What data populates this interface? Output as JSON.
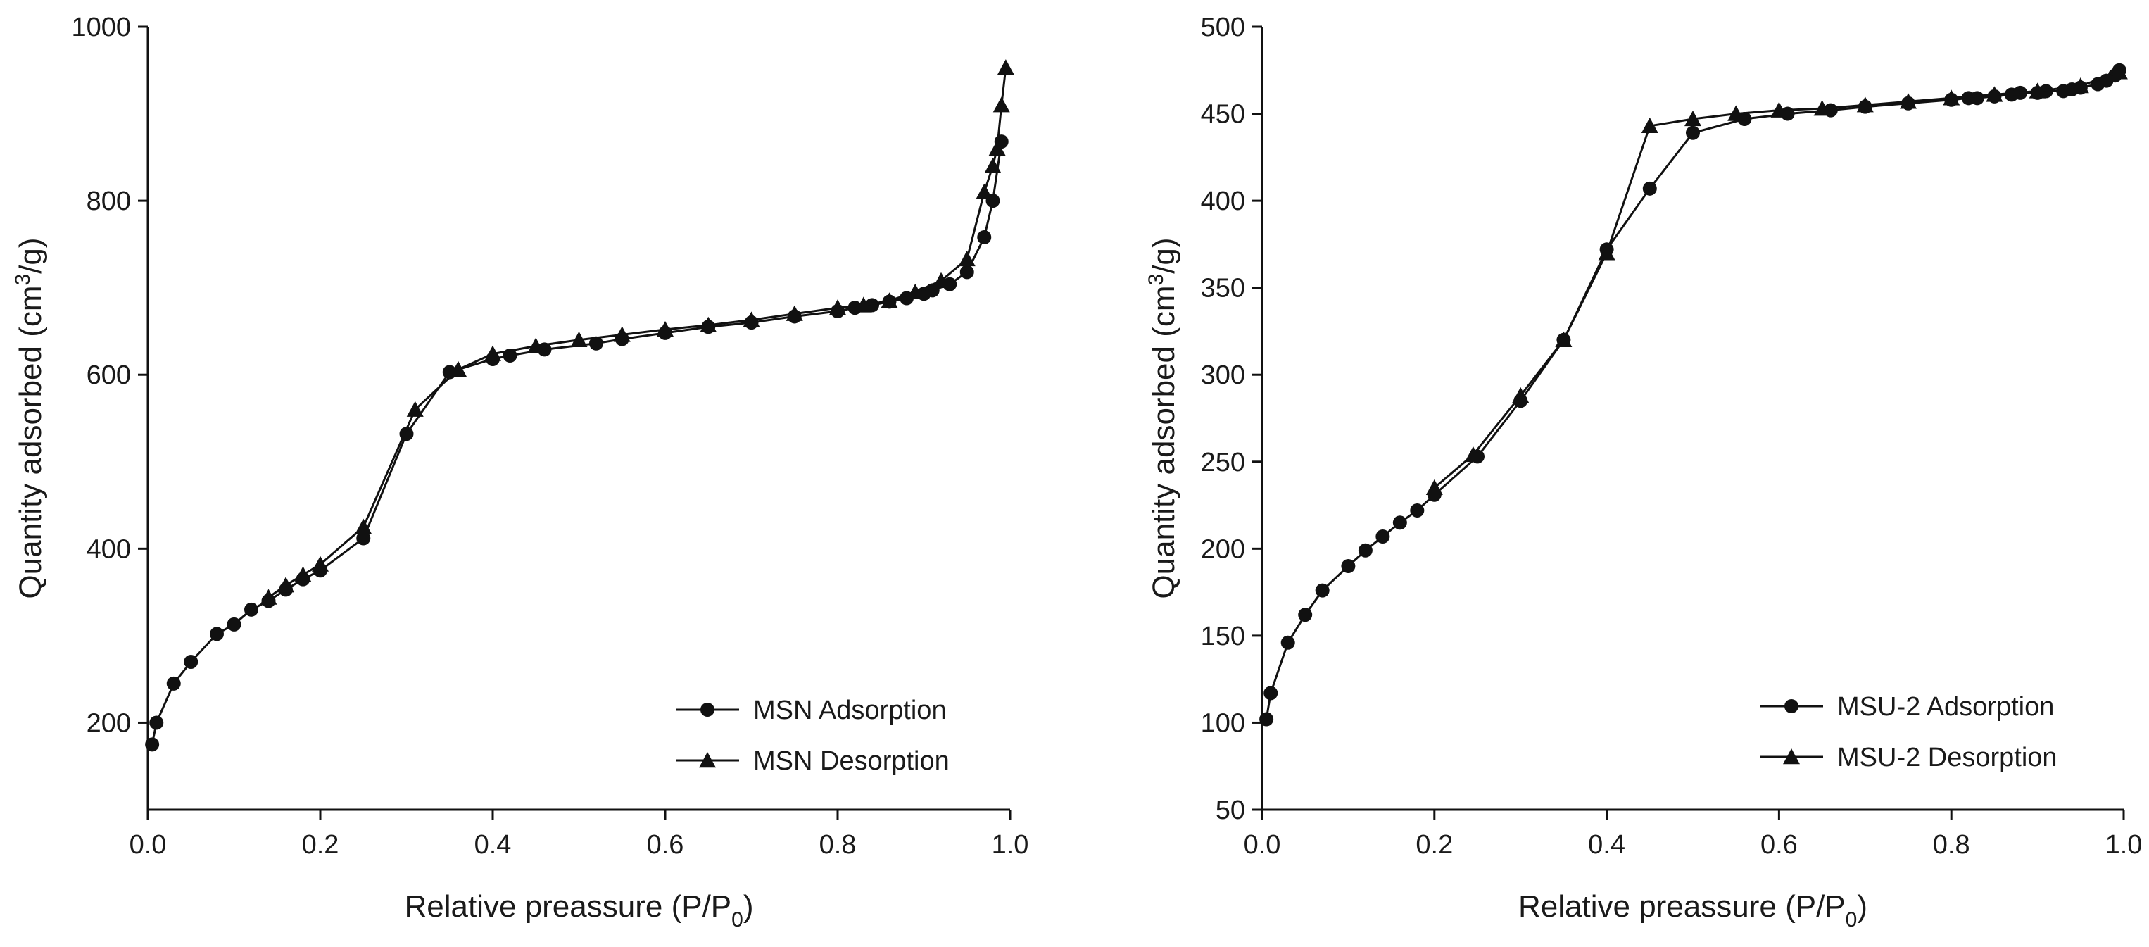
{
  "chart_data": [
    {
      "type": "line",
      "panel": "left",
      "xlabel_prefix": "Relative preassure (P/P",
      "xlabel_sub": "0",
      "xlabel_suffix": ")",
      "ylabel_prefix": "Quantity adsorbed (cm",
      "ylabel_sup": "3",
      "ylabel_suffix": "/g)",
      "xlim": [
        0.0,
        1.0
      ],
      "ylim": [
        100,
        1000
      ],
      "xticks": [
        0.0,
        0.2,
        0.4,
        0.6,
        0.8,
        1.0
      ],
      "xtick_labels": [
        "0.0",
        "0.2",
        "0.4",
        "0.6",
        "0.8",
        "1.0"
      ],
      "yticks": [
        200,
        400,
        600,
        800,
        1000
      ],
      "ytick_labels": [
        "200",
        "400",
        "600",
        "800",
        "1000"
      ],
      "legend_position": "bottom-right",
      "series": [
        {
          "name": "MSN Adsorption",
          "marker": "circle",
          "x": [
            0.005,
            0.01,
            0.03,
            0.05,
            0.08,
            0.1,
            0.12,
            0.14,
            0.16,
            0.18,
            0.2,
            0.25,
            0.3,
            0.35,
            0.4,
            0.42,
            0.46,
            0.52,
            0.55,
            0.6,
            0.65,
            0.7,
            0.75,
            0.8,
            0.82,
            0.84,
            0.86,
            0.88,
            0.9,
            0.91,
            0.93,
            0.95,
            0.97,
            0.98,
            0.99
          ],
          "y": [
            175,
            200,
            245,
            270,
            302,
            313,
            330,
            340,
            353,
            365,
            375,
            412,
            532,
            603,
            618,
            622,
            629,
            636,
            641,
            648,
            655,
            660,
            667,
            673,
            677,
            680,
            684,
            688,
            693,
            697,
            704,
            718,
            758,
            800,
            868
          ]
        },
        {
          "name": "MSN Desorption",
          "marker": "triangle",
          "x": [
            0.995,
            0.99,
            0.985,
            0.98,
            0.97,
            0.95,
            0.92,
            0.89,
            0.86,
            0.83,
            0.8,
            0.75,
            0.7,
            0.65,
            0.6,
            0.55,
            0.5,
            0.45,
            0.4,
            0.36,
            0.31,
            0.25,
            0.2,
            0.18,
            0.16,
            0.14
          ],
          "y": [
            953,
            910,
            860,
            840,
            810,
            733,
            708,
            695,
            685,
            680,
            677,
            670,
            663,
            657,
            652,
            646,
            640,
            633,
            624,
            606,
            560,
            425,
            382,
            370,
            358,
            344
          ]
        }
      ]
    },
    {
      "type": "line",
      "panel": "right",
      "xlabel_prefix": "Relative preassure (P/P",
      "xlabel_sub": "0",
      "xlabel_suffix": ")",
      "ylabel_prefix": "Quantity adsorbed (cm",
      "ylabel_sup": "3",
      "ylabel_suffix": "/g)",
      "xlim": [
        0.0,
        1.0
      ],
      "ylim": [
        50,
        500
      ],
      "xticks": [
        0.0,
        0.2,
        0.4,
        0.6,
        0.8,
        1.0
      ],
      "xtick_labels": [
        "0.0",
        "0.2",
        "0.4",
        "0.6",
        "0.8",
        "1.0"
      ],
      "yticks": [
        50,
        100,
        150,
        200,
        250,
        300,
        350,
        400,
        450,
        500
      ],
      "ytick_labels": [
        "50",
        "100",
        "150",
        "200",
        "250",
        "300",
        "350",
        "400",
        "450",
        "500"
      ],
      "legend_position": "bottom-right",
      "series": [
        {
          "name": "MSU-2 Adsorption",
          "marker": "circle",
          "x": [
            0.005,
            0.01,
            0.03,
            0.05,
            0.07,
            0.1,
            0.12,
            0.14,
            0.16,
            0.18,
            0.2,
            0.25,
            0.3,
            0.35,
            0.4,
            0.45,
            0.5,
            0.56,
            0.61,
            0.66,
            0.7,
            0.75,
            0.8,
            0.82,
            0.83,
            0.85,
            0.87,
            0.88,
            0.9,
            0.91,
            0.93,
            0.94,
            0.95,
            0.97,
            0.98,
            0.99,
            0.995
          ],
          "y": [
            102,
            117,
            146,
            162,
            176,
            190,
            199,
            207,
            215,
            222,
            231,
            253,
            285,
            320,
            372,
            407,
            439,
            447,
            450,
            452,
            454,
            456,
            458,
            459,
            459,
            460,
            461,
            462,
            462,
            463,
            463,
            464,
            465,
            467,
            469,
            472,
            475
          ]
        },
        {
          "name": "MSU-2 Desorption",
          "marker": "triangle",
          "x": [
            0.995,
            0.95,
            0.9,
            0.85,
            0.8,
            0.75,
            0.7,
            0.65,
            0.6,
            0.55,
            0.5,
            0.45,
            0.4,
            0.35,
            0.3,
            0.245,
            0.2
          ],
          "y": [
            474,
            466,
            463,
            461,
            459,
            457,
            455,
            453,
            452,
            450,
            447,
            443,
            370,
            320,
            288,
            254,
            235
          ]
        }
      ]
    }
  ]
}
